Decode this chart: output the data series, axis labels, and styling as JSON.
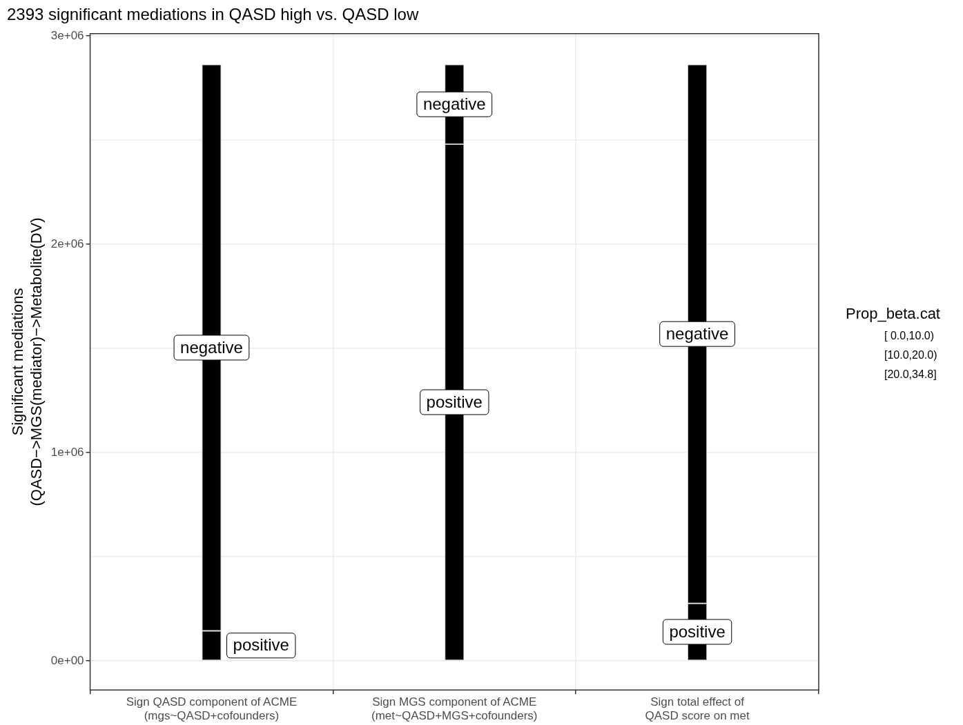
{
  "chart_data": {
    "type": "bar",
    "stacked": true,
    "title": "2393 significant mediations in QASD high vs. QASD low",
    "ylabel": "Significant mediations\n(QASD−>MGS(mediator)−>Metabolite(DV)",
    "legend_title": "Prop_beta.cat",
    "categories": [
      "Sign QASD component of ACME\n(mgs~QASD+cofounders)",
      "Sign MGS component of ACME\n(met~QASD+MGS+cofounders)",
      "Sign total effect of\nQASD score on met"
    ],
    "series": [
      {
        "name": "positive",
        "color": "#000000",
        "values": [
          144000,
          2480000,
          275000
        ]
      },
      {
        "name": "negative",
        "color": "#000000",
        "values": [
          2718000,
          382000,
          2587000
        ]
      }
    ],
    "ylim": [
      -140000,
      3010000
    ],
    "yticks": [
      {
        "value": 0,
        "label": "0e+00"
      },
      {
        "value": 500000,
        "label": null
      },
      {
        "value": 1000000,
        "label": "1e+06"
      },
      {
        "value": 1500000,
        "label": null
      },
      {
        "value": 2000000,
        "label": "2e+06"
      },
      {
        "value": 2500000,
        "label": null
      },
      {
        "value": 3000000,
        "label": "3e+06"
      }
    ],
    "grid": true,
    "legend": "right",
    "annotations": [
      "[ 0.0,10.0)",
      "[10.0,20.0)",
      "[20.0,34.8]"
    ]
  }
}
